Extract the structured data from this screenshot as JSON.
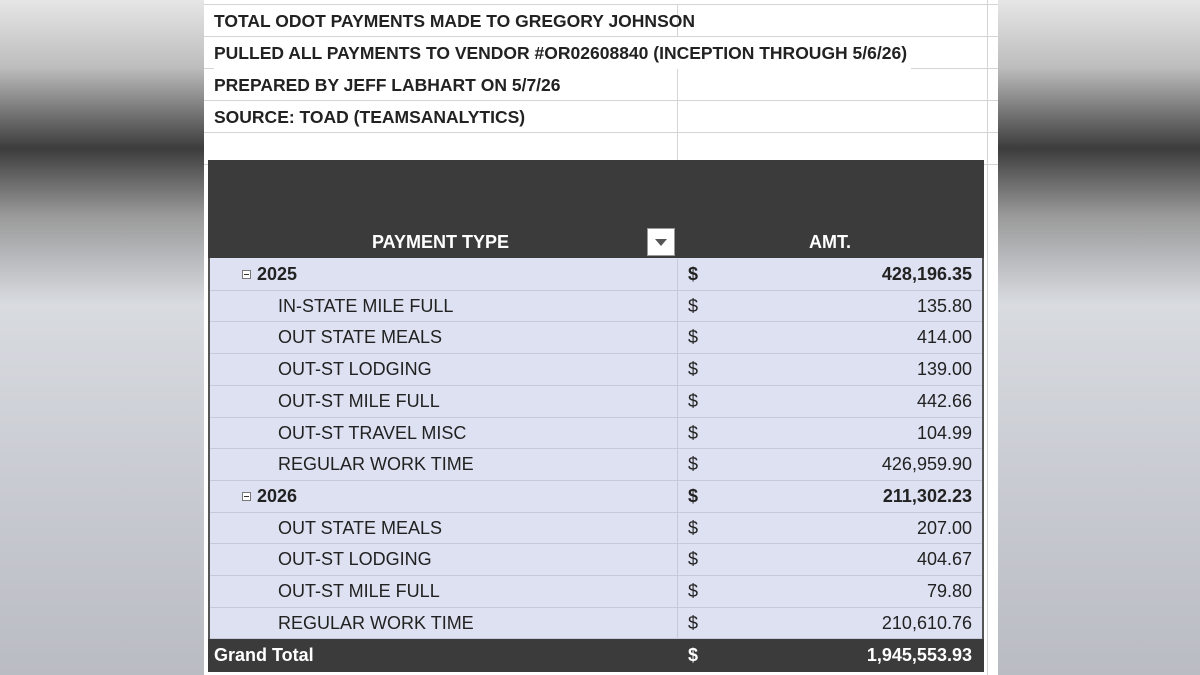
{
  "header": {
    "lines": [
      "TOTAL ODOT PAYMENTS MADE TO GREGORY JOHNSON",
      "PULLED ALL PAYMENTS TO VENDOR #OR02608840 (INCEPTION THROUGH 5/6/26)",
      "PREPARED BY JEFF LABHART ON 5/7/26",
      "SOURCE: TOAD (TEAMSANALYTICS)"
    ]
  },
  "table": {
    "columns": [
      "PAYMENT TYPE",
      "AMT."
    ],
    "groups": [
      {
        "label": "2025",
        "currency": "$",
        "amount": "428,196.35",
        "items": [
          {
            "label": "IN-STATE MILE FULL",
            "currency": "$",
            "amount": "135.80"
          },
          {
            "label": "OUT STATE MEALS",
            "currency": "$",
            "amount": "414.00"
          },
          {
            "label": "OUT-ST LODGING",
            "currency": "$",
            "amount": "139.00"
          },
          {
            "label": "OUT-ST MILE FULL",
            "currency": "$",
            "amount": "442.66"
          },
          {
            "label": "OUT-ST TRAVEL MISC",
            "currency": "$",
            "amount": "104.99"
          },
          {
            "label": "REGULAR WORK TIME",
            "currency": "$",
            "amount": "426,959.90"
          }
        ]
      },
      {
        "label": "2026",
        "currency": "$",
        "amount": "211,302.23",
        "items": [
          {
            "label": "OUT STATE MEALS",
            "currency": "$",
            "amount": "207.00"
          },
          {
            "label": "OUT-ST LODGING",
            "currency": "$",
            "amount": "404.67"
          },
          {
            "label": "OUT-ST MILE FULL",
            "currency": "$",
            "amount": "79.80"
          },
          {
            "label": "REGULAR WORK TIME",
            "currency": "$",
            "amount": "210,610.76"
          }
        ]
      }
    ],
    "grand_total": {
      "label": "Grand Total",
      "currency": "$",
      "amount": "1,945,553.93"
    }
  }
}
